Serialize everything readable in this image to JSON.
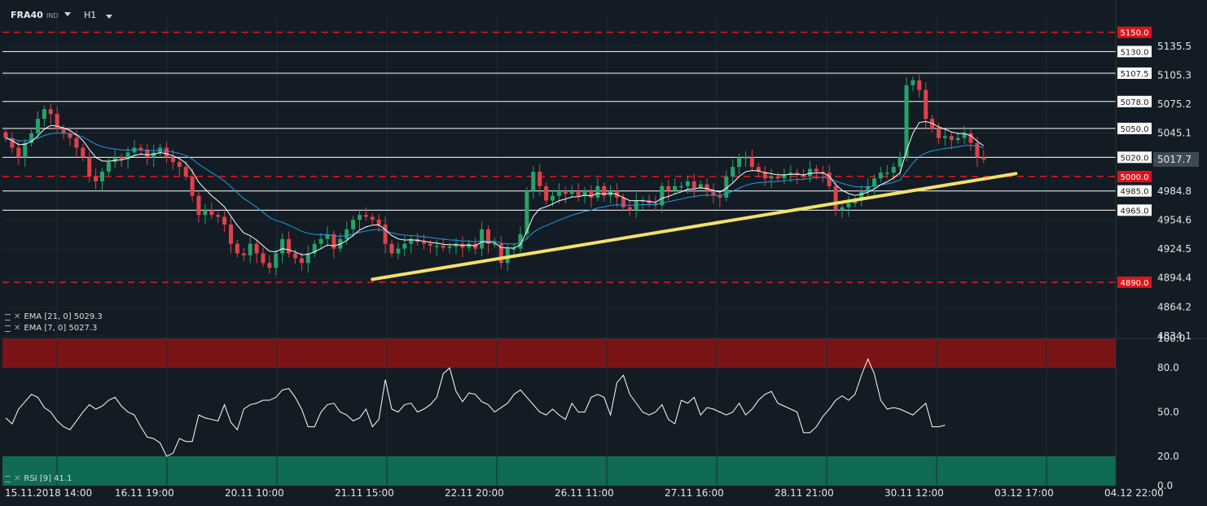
{
  "toolbar": {
    "symbol": "FRA40",
    "type": "IND",
    "timeframe": "H1"
  },
  "colors": {
    "up": "#26a269",
    "down": "#e0414a",
    "ema7": "#ffffff",
    "ema21": "#1e9ce3",
    "trend": "#f4e06a",
    "support_line": "#ffffff",
    "key_line": "#e0141e",
    "rsi_over": "#7a1416",
    "rsi_under": "#0f6b53"
  },
  "legend": {
    "ema21": "EMA [21, 0] 5029.3",
    "ema7": "EMA [7, 0] 5027.3",
    "rsi": "RSI [9] 41.1"
  },
  "price_axis": {
    "ticks": [
      "5135.5",
      "5105.3",
      "5075.2",
      "5045.1",
      "4984.8",
      "4954.6",
      "4924.5",
      "4894.4",
      "4864.2",
      "4834.1"
    ],
    "current": "5017.7"
  },
  "rsi_axis": {
    "ticks": [
      "100.0",
      "80.0",
      "50.0",
      "20.0",
      "0.0"
    ]
  },
  "date_labels": [
    "15.11.2018  14:00",
    "16.11  19:00",
    "20.11  10:00",
    "21.11  15:00",
    "22.11  20:00",
    "26.11  11:00",
    "27.11  16:00",
    "28.11  21:00",
    "30.11  12:00",
    "03.12  17:00",
    "04.12  22:00"
  ],
  "levels": [
    {
      "value": 5150.0,
      "label": "5150.0",
      "style": "dashed-red"
    },
    {
      "value": 5130.0,
      "label": "5130.0",
      "style": "white"
    },
    {
      "value": 5107.5,
      "label": "5107.5",
      "style": "white"
    },
    {
      "value": 5078.0,
      "label": "5078.0",
      "style": "white"
    },
    {
      "value": 5050.0,
      "label": "5050.0",
      "style": "white"
    },
    {
      "value": 5020.0,
      "label": "5020.0",
      "style": "white"
    },
    {
      "value": 5000.0,
      "label": "5000.0",
      "style": "dashed-red"
    },
    {
      "value": 4985.0,
      "label": "4985.0",
      "style": "white"
    },
    {
      "value": 4965.0,
      "label": "4965.0",
      "style": "white"
    },
    {
      "value": 4890.0,
      "label": "4890.0",
      "style": "dashed-red"
    }
  ],
  "chart_data": {
    "type": "candlestick",
    "symbol": "FRA40",
    "timeframe": "H1",
    "ylim": [
      4834.1,
      5165
    ],
    "rsi_ylim": [
      0,
      100
    ],
    "trendline": {
      "start": [
        57,
        4893
      ],
      "end": [
        157,
        5003
      ]
    },
    "close": [
      5040,
      5030,
      5020,
      5035,
      5045,
      5060,
      5070,
      5065,
      5050,
      5045,
      5040,
      5030,
      5020,
      5000,
      4995,
      5005,
      5015,
      5020,
      5018,
      5025,
      5030,
      5028,
      5020,
      5025,
      5030,
      5020,
      5015,
      5010,
      5000,
      4980,
      4960,
      4965,
      4960,
      4958,
      4950,
      4930,
      4920,
      4918,
      4930,
      4920,
      4910,
      4905,
      4920,
      4935,
      4920,
      4915,
      4910,
      4920,
      4930,
      4935,
      4940,
      4925,
      4935,
      4945,
      4955,
      4960,
      4958,
      4955,
      4950,
      4930,
      4920,
      4925,
      4930,
      4935,
      4932,
      4930,
      4928,
      4928,
      4926,
      4927,
      4930,
      4926,
      4930,
      4925,
      4945,
      4930,
      4930,
      4910,
      4925,
      4925,
      4940,
      4985,
      5005,
      4990,
      4975,
      4980,
      4985,
      4982,
      4985,
      4980,
      4985,
      4978,
      4990,
      4980,
      4985,
      4978,
      4968,
      4965,
      4975,
      4975,
      4972,
      4970,
      4990,
      4985,
      4990,
      4990,
      4995,
      4988,
      4992,
      4985,
      4980,
      4978,
      5000,
      5010,
      5020,
      5020,
      5010,
      5005,
      4998,
      5000,
      4998,
      5002,
      5004,
      5002,
      5000,
      5008,
      5005,
      5004,
      4990,
      4965,
      4968,
      4972,
      4975,
      4985,
      4990,
      4998,
      5004,
      5004,
      5010,
      5020,
      5095,
      5100,
      5090,
      5060,
      5050,
      5040,
      5042,
      5038,
      5040,
      5045,
      5035,
      5020,
      5017.7
    ],
    "rsi": [
      46,
      42,
      52,
      57,
      62,
      60,
      53,
      50,
      44,
      40,
      38,
      44,
      50,
      55,
      52,
      54,
      58,
      60,
      54,
      50,
      48,
      40,
      33,
      32,
      29,
      20,
      22,
      32,
      30,
      30,
      48,
      46,
      45,
      44,
      55,
      43,
      38,
      52,
      55,
      56,
      58,
      58,
      60,
      65,
      66,
      60,
      52,
      40,
      40,
      50,
      55,
      56,
      50,
      48,
      44,
      46,
      52,
      40,
      45,
      72,
      52,
      50,
      55,
      56,
      50,
      52,
      55,
      60,
      76,
      80,
      64,
      57,
      63,
      62,
      57,
      55,
      50,
      53,
      56,
      62,
      65,
      60,
      55,
      50,
      48,
      52,
      48,
      45,
      56,
      50,
      50,
      60,
      62,
      60,
      48,
      70,
      75,
      62,
      56,
      50,
      48,
      50,
      55,
      45,
      42,
      58,
      56,
      60,
      48,
      53,
      52,
      50,
      48,
      50,
      56,
      48,
      52,
      58,
      62,
      64,
      56,
      54,
      52,
      50,
      36,
      36,
      40,
      47,
      52,
      58,
      61,
      58,
      62,
      75,
      86,
      76,
      58,
      52,
      53,
      52,
      50,
      48,
      52,
      56,
      40,
      40,
      41.1
    ]
  }
}
